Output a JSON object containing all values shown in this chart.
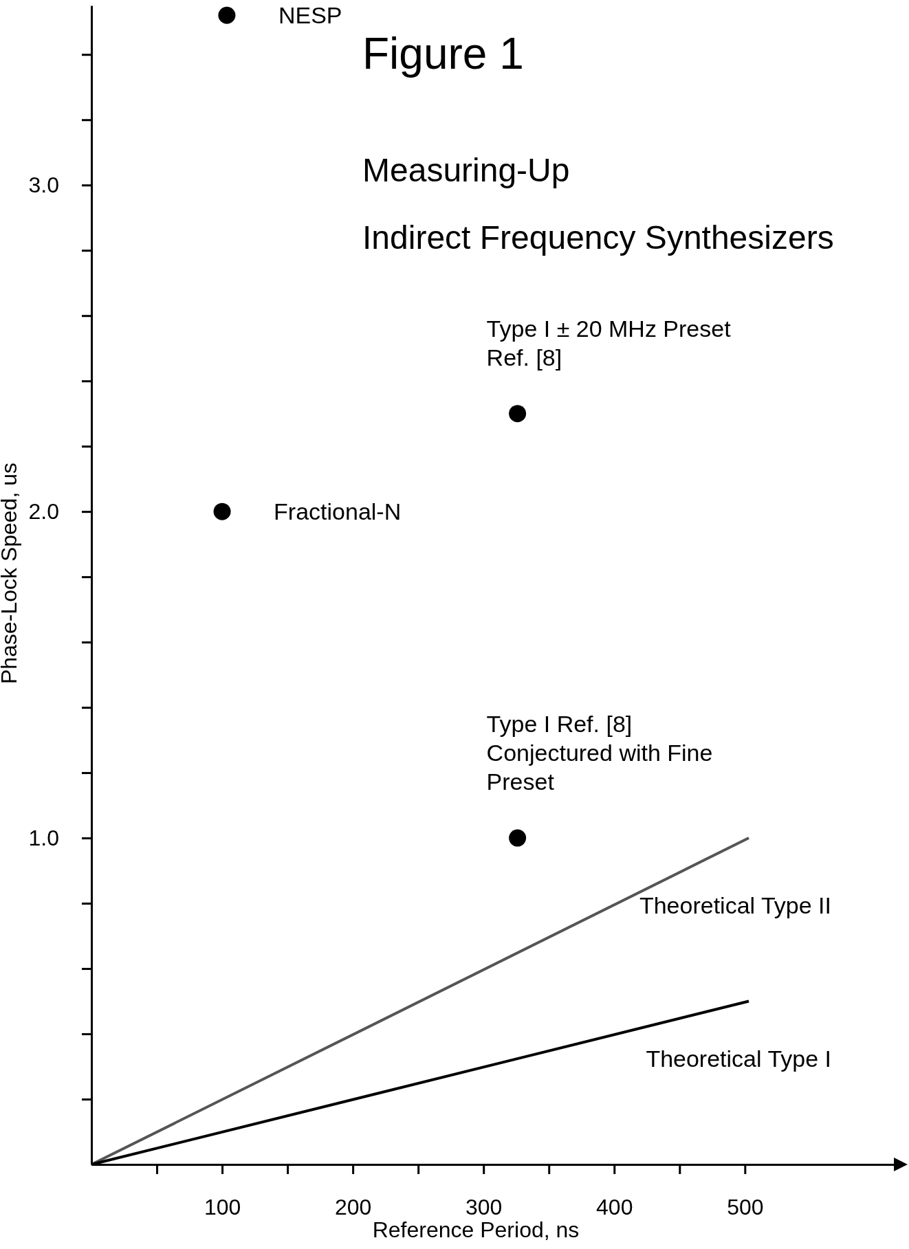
{
  "chart_data": {
    "type": "scatter",
    "title": "Figure 1",
    "subtitle": "Measuring-Up\nIndirect Frequency Synthesizers",
    "xlabel": "Reference Period, ns",
    "ylabel": "Phase-Lock Speed, us",
    "xlim": [
      0,
      614
    ],
    "ylim": [
      0,
      3.55
    ],
    "xticks": [
      {
        "value": 50,
        "label": null
      },
      100,
      {
        "value": 150,
        "label": null
      },
      200,
      {
        "value": 250,
        "label": null
      },
      300,
      {
        "value": 350,
        "label": null
      },
      400,
      {
        "value": 450,
        "label": null
      },
      500
    ],
    "yticks": [
      {
        "value": 0.2,
        "label": null
      },
      {
        "value": 0.4,
        "label": null
      },
      {
        "value": 0.6,
        "label": null
      },
      {
        "value": 0.8,
        "label": null
      },
      {
        "value": 1.0,
        "label": "1.0"
      },
      {
        "value": 1.2,
        "label": null
      },
      {
        "value": 1.4,
        "label": null
      },
      {
        "value": 1.6,
        "label": null
      },
      {
        "value": 1.8,
        "label": null
      },
      {
        "value": 2.0,
        "label": "2.0"
      },
      {
        "value": 2.2,
        "label": null
      },
      {
        "value": 2.4,
        "label": null
      },
      {
        "value": 2.6,
        "label": null
      },
      {
        "value": 2.8,
        "label": null
      },
      {
        "value": 3.0,
        "label": "3.0"
      },
      {
        "value": 3.2,
        "label": null
      },
      {
        "value": 3.4,
        "label": null
      }
    ],
    "marker": "circle",
    "series": [
      {
        "color": "#000000",
        "x": [
          103.6,
          100,
          326,
          326
        ],
        "values": [
          3.52,
          2.0,
          2.3,
          1.0
        ]
      },
      {
        "type": "line",
        "marker": "none",
        "name": "Theoretical Type II",
        "color": "#555555",
        "x": [
          0,
          503
        ],
        "values": [
          0,
          1.0
        ]
      },
      {
        "type": "line",
        "marker": "none",
        "name": "Theoretical Type I",
        "color": "#000000",
        "x": [
          0,
          503
        ],
        "values": [
          0,
          0.5
        ]
      }
    ],
    "annotations": [
      {
        "text": "NESP",
        "x": 103.6,
        "y": 3.52
      },
      {
        "text": "Fractional-N",
        "x": 100,
        "y": 2.0
      },
      {
        "text": "Type I ± 20 MHz Preset\nRef. [8]",
        "x": 326,
        "y": 2.3
      },
      {
        "text": "Type I Ref. [8]\nConjectured with Fine\nPreset",
        "x": 326,
        "y": 1.0
      }
    ]
  }
}
